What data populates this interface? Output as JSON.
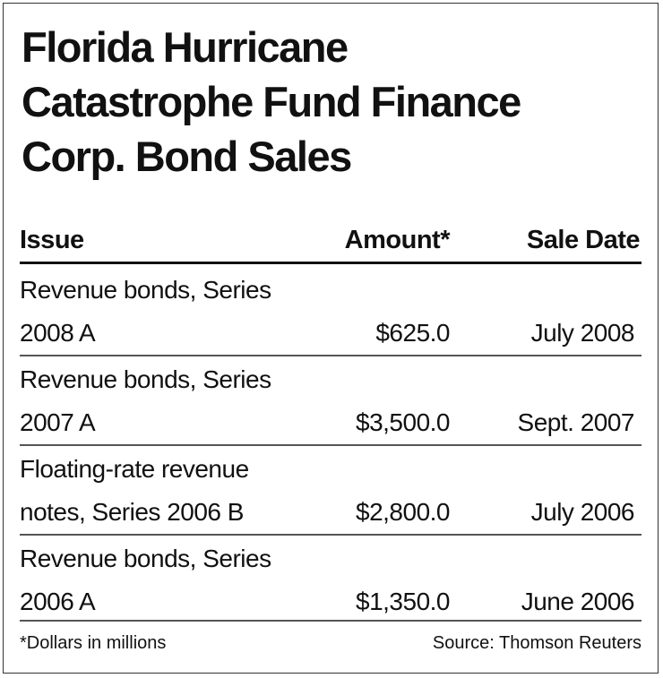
{
  "title": {
    "line1": "Florida Hurricane",
    "line2": "Catastrophe Fund Finance",
    "line3": "Corp. Bond Sales"
  },
  "table": {
    "columns": [
      "Issue",
      "Amount*",
      "Sale Date"
    ],
    "rows": [
      {
        "issue": "Revenue bonds, Series 2008 A",
        "amount": "$625.0",
        "date": "July 2008"
      },
      {
        "issue": "Revenue bonds, Series 2007 A",
        "amount": "$3,500.0",
        "date": "Sept. 2007"
      },
      {
        "issue": "Floating-rate revenue notes, Series 2006 B",
        "amount": "$2,800.0",
        "date": "July 2006"
      },
      {
        "issue": "Revenue bonds, Series 2006 A",
        "amount": "$1,350.0",
        "date": "June 2006"
      }
    ]
  },
  "footnote": "*Dollars in millions",
  "source": "Source: Thomson Reuters"
}
